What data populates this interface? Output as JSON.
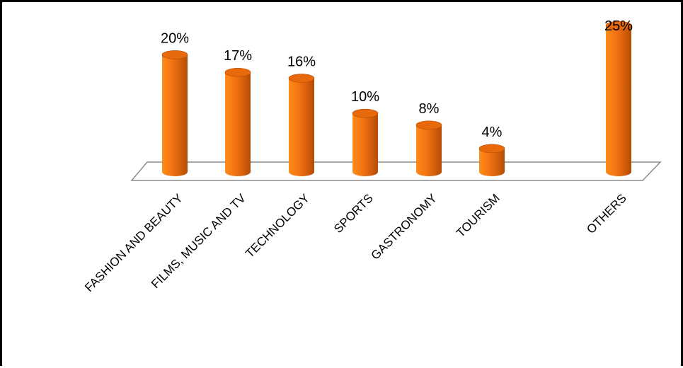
{
  "chart_data": {
    "type": "bar",
    "style": "3d-cylinder",
    "categories": [
      "FASHION AND BEAUTY",
      "FILMS, MUSIC AND TV",
      "TECHNOLOGY",
      "SPORTS",
      "GASTRONOMY",
      "TOURISM",
      "OTHERS"
    ],
    "values": [
      20,
      17,
      16,
      10,
      8,
      4,
      25
    ],
    "data_labels": [
      "20%",
      "17%",
      "16%",
      "10%",
      "8%",
      "4%",
      "25%"
    ],
    "unit": "%",
    "title": "",
    "xlabel": "",
    "ylabel": "",
    "ylim": [
      0,
      25
    ],
    "grid": false,
    "legend": "none",
    "colors": {
      "bar_light": "#ff8c1a",
      "bar_mid": "#f07010",
      "bar_dark": "#b44c05",
      "bar_top": "#e8680c",
      "floor_stroke": "#8c8c8c"
    }
  }
}
